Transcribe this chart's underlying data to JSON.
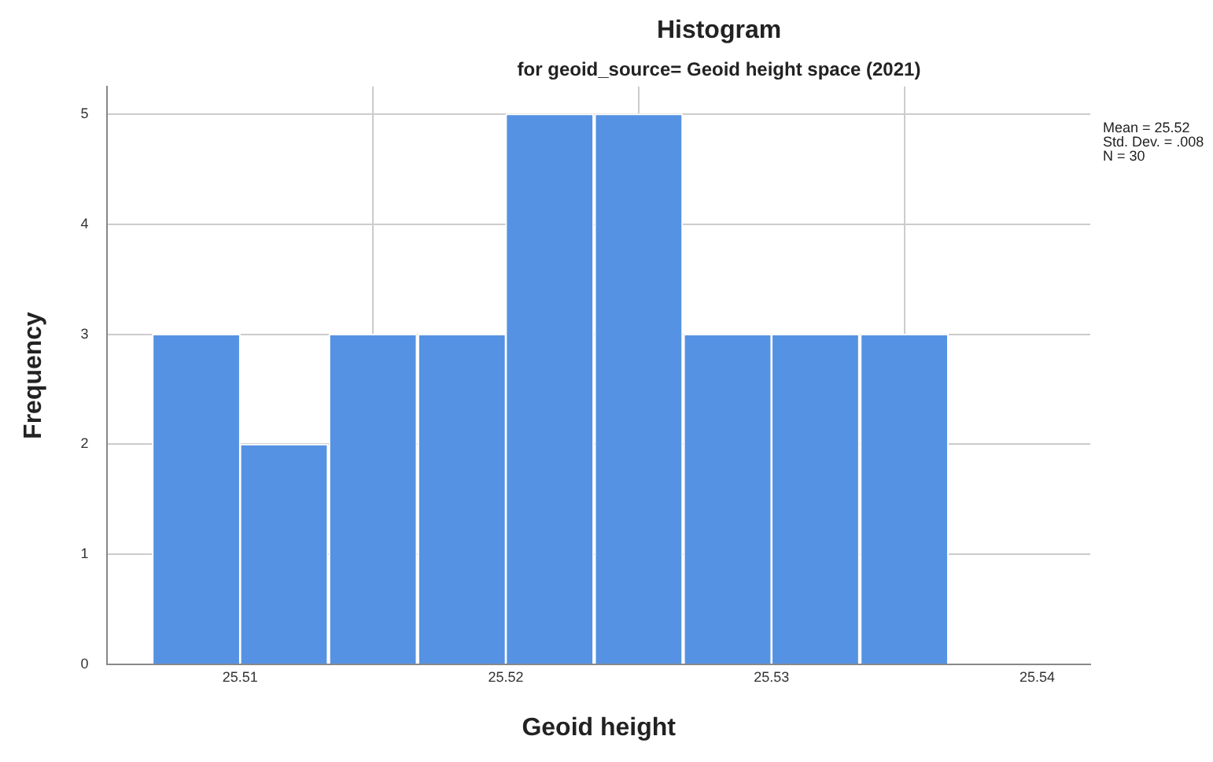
{
  "chart_data": {
    "type": "histogram",
    "title": "Histogram",
    "subtitle": "for geoid_source= Geoid height space (2021)",
    "xlabel": "Geoid height",
    "ylabel": "Frequency",
    "bins": [
      25.5067,
      25.51,
      25.5133,
      25.5167,
      25.52,
      25.5233,
      25.5267,
      25.53,
      25.5333,
      25.5367
    ],
    "values": [
      3,
      2,
      3,
      3,
      5,
      5,
      3,
      3,
      3
    ],
    "color": "#5592e3",
    "xlim": [
      25.505,
      25.542
    ],
    "xticks": [
      25.51,
      25.52,
      25.53,
      25.54
    ],
    "ylim": [
      0,
      5.25
    ],
    "yticks": [
      0,
      1,
      2,
      3,
      4,
      5
    ],
    "grid": true,
    "annotations": [
      "Mean = 25.52",
      "Std. Dev. = .008",
      "N = 30"
    ]
  }
}
